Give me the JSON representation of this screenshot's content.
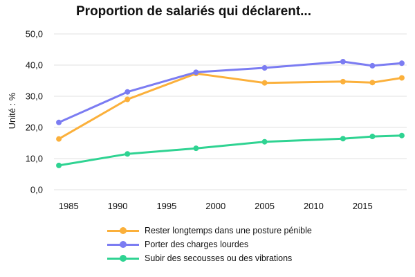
{
  "chart_data": {
    "type": "line",
    "title": "Proportion de salariés qui déclarent...",
    "ylabel": "Unité : %",
    "xlabel": "",
    "xlim": [
      1983.5,
      2019.5
    ],
    "ylim": [
      0,
      50
    ],
    "x_ticks": [
      1985,
      1990,
      1995,
      2000,
      2005,
      2010,
      2015
    ],
    "y_ticks": [
      0,
      10,
      20,
      30,
      40,
      50
    ],
    "y_tick_labels": [
      "0,0",
      "10,0",
      "20,0",
      "30,0",
      "40,0",
      "50,0"
    ],
    "grid": "horizontal",
    "legend_position": "bottom",
    "series": [
      {
        "name": "Rester longtemps dans une posture pénible",
        "color": "#fbb03b",
        "x": [
          1984,
          1991,
          1998,
          2005,
          2013,
          2016,
          2019
        ],
        "values": [
          16.3,
          29.0,
          37.3,
          34.3,
          34.7,
          34.4,
          35.9
        ]
      },
      {
        "name": "Porter des charges lourdes",
        "color": "#7b7cf2",
        "x": [
          1984,
          1991,
          1998,
          2005,
          2013,
          2016,
          2019
        ],
        "values": [
          21.6,
          31.4,
          37.7,
          39.1,
          41.1,
          39.8,
          40.6
        ]
      },
      {
        "name": "Subir des secousses ou des vibrations",
        "color": "#2fd392",
        "x": [
          1984,
          1991,
          1998,
          2005,
          2013,
          2016,
          2019
        ],
        "values": [
          7.8,
          11.5,
          13.3,
          15.4,
          16.4,
          17.1,
          17.4
        ]
      }
    ]
  }
}
